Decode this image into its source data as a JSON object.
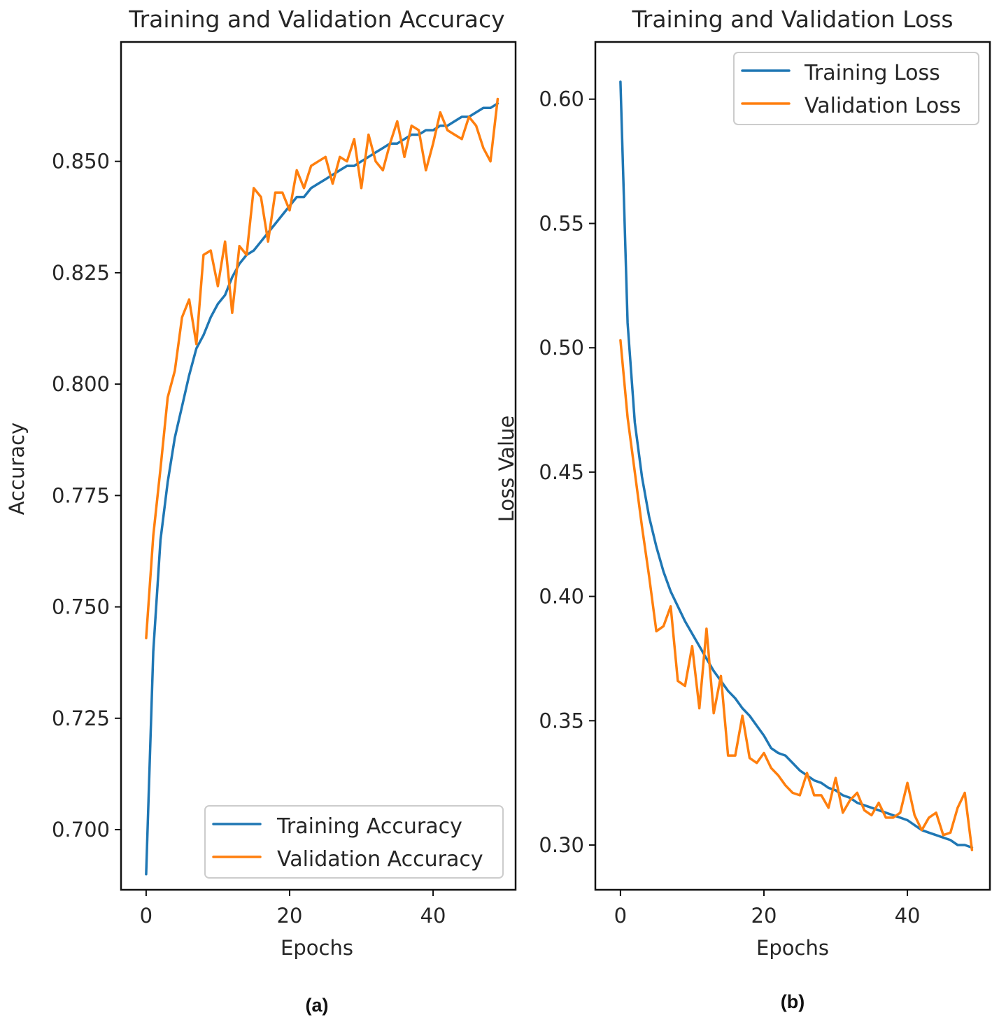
{
  "chart_data": [
    {
      "type": "line",
      "title": "Training and Validation Accuracy",
      "xlabel": "Epochs",
      "ylabel": "Accuracy",
      "xlim": [
        -3.5,
        51.5
      ],
      "ylim": [
        0.6865,
        0.8768
      ],
      "xticks": [
        0,
        20,
        40
      ],
      "xtick_labels": [
        "0",
        "20",
        "40"
      ],
      "yticks": [
        0.7,
        0.725,
        0.75,
        0.775,
        0.8,
        0.825,
        0.85
      ],
      "ytick_labels": [
        "0.700",
        "0.725",
        "0.750",
        "0.775",
        "0.800",
        "0.825",
        "0.850"
      ],
      "legend_position": "lower-right",
      "caption": "(a)",
      "x": [
        0,
        1,
        2,
        3,
        4,
        5,
        6,
        7,
        8,
        9,
        10,
        11,
        12,
        13,
        14,
        15,
        16,
        17,
        18,
        19,
        20,
        21,
        22,
        23,
        24,
        25,
        26,
        27,
        28,
        29,
        30,
        31,
        32,
        33,
        34,
        35,
        36,
        37,
        38,
        39,
        40,
        41,
        42,
        43,
        44,
        45,
        46,
        47,
        48,
        49
      ],
      "series": [
        {
          "name": "Training Accuracy",
          "color": "#1f77b4",
          "values": [
            0.69,
            0.74,
            0.765,
            0.778,
            0.788,
            0.795,
            0.802,
            0.808,
            0.811,
            0.815,
            0.818,
            0.82,
            0.824,
            0.827,
            0.829,
            0.83,
            0.832,
            0.834,
            0.836,
            0.838,
            0.84,
            0.842,
            0.842,
            0.844,
            0.845,
            0.846,
            0.847,
            0.848,
            0.849,
            0.849,
            0.85,
            0.851,
            0.852,
            0.853,
            0.854,
            0.854,
            0.855,
            0.856,
            0.856,
            0.857,
            0.857,
            0.858,
            0.858,
            0.859,
            0.86,
            0.86,
            0.861,
            0.862,
            0.862,
            0.863
          ]
        },
        {
          "name": "Validation Accuracy",
          "color": "#ff7f0e",
          "values": [
            0.743,
            0.766,
            0.781,
            0.797,
            0.803,
            0.815,
            0.819,
            0.809,
            0.829,
            0.83,
            0.822,
            0.832,
            0.816,
            0.831,
            0.829,
            0.844,
            0.842,
            0.832,
            0.843,
            0.843,
            0.839,
            0.848,
            0.844,
            0.849,
            0.85,
            0.851,
            0.845,
            0.851,
            0.85,
            0.855,
            0.844,
            0.856,
            0.85,
            0.848,
            0.854,
            0.859,
            0.851,
            0.858,
            0.857,
            0.848,
            0.854,
            0.861,
            0.857,
            0.856,
            0.855,
            0.86,
            0.858,
            0.853,
            0.85,
            0.864
          ]
        }
      ]
    },
    {
      "type": "line",
      "title": "Training and Validation Loss",
      "xlabel": "Epochs",
      "ylabel": "Loss Value",
      "xlim": [
        -3.5,
        51.5
      ],
      "ylim": [
        0.282,
        0.623
      ],
      "xticks": [
        0,
        20,
        40
      ],
      "xtick_labels": [
        "0",
        "20",
        "40"
      ],
      "yticks": [
        0.3,
        0.35,
        0.4,
        0.45,
        0.5,
        0.55,
        0.6
      ],
      "ytick_labels": [
        "0.30",
        "0.35",
        "0.40",
        "0.45",
        "0.50",
        "0.55",
        "0.60"
      ],
      "legend_position": "upper-right",
      "caption": "(b)",
      "x": [
        0,
        1,
        2,
        3,
        4,
        5,
        6,
        7,
        8,
        9,
        10,
        11,
        12,
        13,
        14,
        15,
        16,
        17,
        18,
        19,
        20,
        21,
        22,
        23,
        24,
        25,
        26,
        27,
        28,
        29,
        30,
        31,
        32,
        33,
        34,
        35,
        36,
        37,
        38,
        39,
        40,
        41,
        42,
        43,
        44,
        45,
        46,
        47,
        48,
        49
      ],
      "series": [
        {
          "name": "Training Loss",
          "color": "#1f77b4",
          "values": [
            0.607,
            0.51,
            0.47,
            0.448,
            0.432,
            0.42,
            0.41,
            0.402,
            0.396,
            0.39,
            0.385,
            0.38,
            0.375,
            0.37,
            0.366,
            0.362,
            0.359,
            0.355,
            0.352,
            0.348,
            0.344,
            0.339,
            0.337,
            0.336,
            0.333,
            0.33,
            0.328,
            0.326,
            0.325,
            0.323,
            0.322,
            0.32,
            0.319,
            0.317,
            0.316,
            0.315,
            0.314,
            0.313,
            0.312,
            0.311,
            0.31,
            0.308,
            0.306,
            0.305,
            0.304,
            0.303,
            0.302,
            0.3,
            0.3,
            0.299
          ]
        },
        {
          "name": "Validation Loss",
          "color": "#ff7f0e",
          "values": [
            0.503,
            0.472,
            0.45,
            0.428,
            0.408,
            0.386,
            0.388,
            0.396,
            0.366,
            0.364,
            0.38,
            0.355,
            0.387,
            0.353,
            0.368,
            0.336,
            0.336,
            0.352,
            0.335,
            0.333,
            0.337,
            0.331,
            0.328,
            0.324,
            0.321,
            0.32,
            0.329,
            0.32,
            0.32,
            0.315,
            0.327,
            0.313,
            0.318,
            0.321,
            0.314,
            0.312,
            0.317,
            0.311,
            0.311,
            0.313,
            0.325,
            0.312,
            0.306,
            0.311,
            0.313,
            0.304,
            0.305,
            0.315,
            0.321,
            0.298
          ]
        }
      ]
    }
  ]
}
